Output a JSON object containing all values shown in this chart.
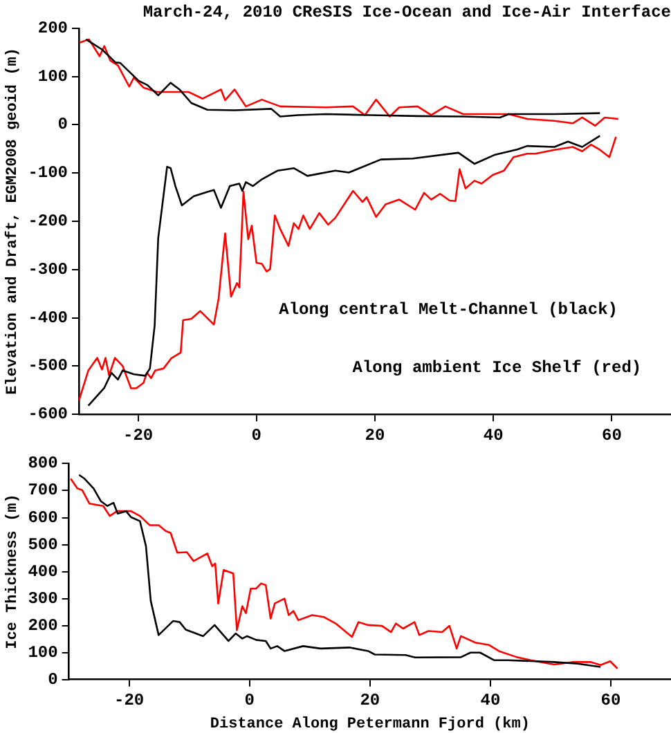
{
  "chart_data": [
    {
      "type": "line",
      "title": "March-24, 2010 CReSIS Ice-Ocean and Ice-Air Interface",
      "ylabel": "Elevation and Draft, EGM2008 geoid (m)",
      "annotations": [
        "Along central Melt-Channel (black)",
        "Along ambient Ice Shelf (red)"
      ],
      "xlim": [
        -30,
        70
      ],
      "xticks": [
        -20,
        0,
        20,
        40,
        60
      ],
      "ylim": [
        -600,
        200
      ],
      "yticks": [
        -600,
        -500,
        -400,
        -300,
        -200,
        -100,
        0,
        100,
        200
      ],
      "grid": false,
      "legend": false,
      "marker": "none",
      "line_style": "solid",
      "series": [
        {
          "color": "#000000",
          "x": [
            -28.8,
            -26.1,
            -23.8,
            -23.0,
            -21.5,
            -19.9,
            -18.4,
            -16.6,
            -14.5,
            -13.0,
            -11.0,
            -8.3,
            -3.7,
            2.5,
            4.0,
            7.0,
            11.7,
            19.4,
            27.2,
            34.9,
            41.1,
            42.6,
            50.3,
            58.0
          ],
          "values": [
            177,
            156,
            129,
            128,
            110,
            91,
            82,
            61,
            87,
            73,
            45,
            31,
            30,
            33,
            17,
            20,
            22,
            20,
            18,
            17,
            15,
            22,
            22,
            24
          ]
        },
        {
          "color": "#ff0000",
          "x": [
            -29.9,
            -28.3,
            -26.5,
            -25.7,
            -24.7,
            -23.4,
            -21.5,
            -20.7,
            -19.1,
            -16.8,
            -11.5,
            -9.1,
            -6.0,
            -5.3,
            -3.7,
            -1.8,
            0.9,
            4.0,
            11.7,
            16.3,
            18.3,
            20.2,
            22.5,
            24.1,
            27.2,
            29.5,
            31.9,
            34.9,
            42.6,
            45.7,
            50.3,
            53.4,
            55.0,
            57.2,
            58.8,
            61.1
          ],
          "values": [
            170,
            177,
            142,
            163,
            133,
            123,
            79,
            98,
            77,
            68,
            68,
            54,
            73,
            51,
            73,
            38,
            52,
            38,
            36,
            38,
            20,
            52,
            17,
            36,
            38,
            20,
            38,
            22,
            22,
            12,
            8,
            3,
            15,
            -2,
            15,
            12
          ]
        },
        {
          "color": "#000000",
          "x": [
            -28.4,
            -25.7,
            -24.5,
            -23.4,
            -22.6,
            -20.7,
            -18.8,
            -18.0,
            -17.2,
            -16.6,
            -15.1,
            -14.5,
            -13.7,
            -12.6,
            -10.6,
            -8.3,
            -7.2,
            -6.0,
            -4.5,
            -2.9,
            -2.4,
            -1.8,
            -0.6,
            0.9,
            3.6,
            6.3,
            8.6,
            13.3,
            15.6,
            21.0,
            26.4,
            34.1,
            36.8,
            40.3,
            44.1,
            45.7,
            50.3,
            52.6,
            55.0,
            58.0
          ],
          "values": [
            -582,
            -545,
            -514,
            -528,
            -509,
            -517,
            -520,
            -505,
            -416,
            -235,
            -87,
            -90,
            -127,
            -167,
            -148,
            -139,
            -135,
            -172,
            -127,
            -122,
            -137,
            -119,
            -127,
            -113,
            -95,
            -90,
            -106,
            -95,
            -99,
            -72,
            -70,
            -58,
            -81,
            -62,
            -51,
            -44,
            -46,
            -35,
            -46,
            -23
          ]
        },
        {
          "color": "#ff0000",
          "x": [
            -30.0,
            -28.4,
            -26.9,
            -26.1,
            -25.5,
            -24.9,
            -23.9,
            -22.6,
            -21.2,
            -20.3,
            -19.1,
            -18.5,
            -17.8,
            -17.1,
            -15.7,
            -14.4,
            -12.8,
            -12.4,
            -11.0,
            -9.5,
            -7.2,
            -6.4,
            -5.3,
            -4.3,
            -3.3,
            -2.9,
            -2.2,
            -1.4,
            -0.8,
            0.0,
            0.9,
            1.7,
            2.3,
            3.1,
            4.0,
            5.4,
            6.3,
            7.1,
            7.9,
            9.0,
            10.6,
            12.1,
            13.3,
            16.3,
            17.9,
            18.6,
            20.2,
            21.8,
            24.1,
            26.8,
            28.3,
            29.5,
            31.0,
            32.6,
            33.6,
            34.3,
            35.3,
            36.8,
            38.0,
            39.9,
            41.8,
            43.4,
            45.7,
            47.1,
            50.3,
            53.4,
            55.0,
            56.5,
            58.0,
            59.6,
            60.7
          ],
          "values": [
            -572,
            -509,
            -483,
            -507,
            -483,
            -519,
            -483,
            -500,
            -546,
            -546,
            -535,
            -514,
            -525,
            -509,
            -505,
            -484,
            -472,
            -405,
            -402,
            -386,
            -414,
            -360,
            -225,
            -356,
            -328,
            -337,
            -139,
            -237,
            -209,
            -286,
            -288,
            -304,
            -299,
            -188,
            -216,
            -251,
            -204,
            -216,
            -188,
            -216,
            -183,
            -207,
            -193,
            -137,
            -160,
            -150,
            -191,
            -165,
            -155,
            -176,
            -141,
            -155,
            -143,
            -157,
            -158,
            -92,
            -132,
            -116,
            -122,
            -104,
            -95,
            -67,
            -60,
            -60,
            -52,
            -46,
            -55,
            -41,
            -52,
            -67,
            -25
          ]
        }
      ]
    },
    {
      "type": "line",
      "xlabel": "Distance Along Petermann Fjord (km)",
      "ylabel": "Ice Thickness (m)",
      "xlim": [
        -30,
        70
      ],
      "xticks": [
        -20,
        0,
        20,
        40,
        60
      ],
      "ylim": [
        0,
        800
      ],
      "yticks": [
        0,
        100,
        200,
        300,
        400,
        500,
        600,
        700,
        800
      ],
      "grid": false,
      "legend": false,
      "marker": "none",
      "line_style": "solid",
      "series": [
        {
          "color": "#000000",
          "x": [
            -28.3,
            -27.4,
            -25.9,
            -24.7,
            -23.6,
            -22.6,
            -21.9,
            -20.5,
            -19.7,
            -18.2,
            -17.2,
            -16.4,
            -15.1,
            -12.7,
            -11.6,
            -10.6,
            -7.7,
            -5.8,
            -3.5,
            -2.3,
            -1.2,
            -0.4,
            1.1,
            2.7,
            3.5,
            4.6,
            5.8,
            8.9,
            11.8,
            16.6,
            19.7,
            20.8,
            25.9,
            27.5,
            35.1,
            36.7,
            38.3,
            40.6,
            42.9,
            50.6,
            54.5,
            58.3
          ],
          "values": [
            758,
            744,
            708,
            661,
            643,
            655,
            615,
            624,
            602,
            587,
            494,
            291,
            165,
            217,
            213,
            185,
            161,
            202,
            143,
            171,
            152,
            161,
            147,
            143,
            115,
            124,
            106,
            124,
            115,
            119,
            106,
            93,
            91,
            82,
            83,
            100,
            100,
            72,
            72,
            65,
            59,
            47
          ]
        },
        {
          "color": "#ff0000",
          "x": [
            -29.7,
            -28.6,
            -27.8,
            -26.6,
            -24.3,
            -23.2,
            -22.0,
            -19.7,
            -18.2,
            -16.6,
            -15.1,
            -13.9,
            -13.1,
            -12.0,
            -10.4,
            -9.3,
            -7.0,
            -6.2,
            -5.7,
            -5.2,
            -4.3,
            -2.7,
            -2.1,
            -1.2,
            -0.6,
            0.2,
            1.1,
            1.9,
            2.7,
            3.5,
            4.2,
            5.8,
            6.5,
            7.3,
            8.1,
            10.4,
            12.3,
            14.3,
            17.0,
            18.1,
            19.7,
            22.0,
            23.5,
            24.3,
            25.5,
            27.4,
            28.2,
            29.7,
            32.0,
            33.2,
            34.4,
            35.1,
            37.5,
            39.8,
            41.4,
            44.4,
            46.7,
            50.6,
            53.6,
            56.7,
            58.3,
            59.9,
            61.1
          ],
          "values": [
            744,
            708,
            702,
            652,
            643,
            606,
            624,
            624,
            606,
            572,
            572,
            550,
            543,
            470,
            472,
            439,
            467,
            420,
            430,
            282,
            406,
            393,
            183,
            272,
            246,
            337,
            337,
            356,
            350,
            226,
            282,
            300,
            239,
            254,
            220,
            239,
            232,
            208,
            158,
            213,
            202,
            199,
            176,
            208,
            189,
            213,
            165,
            180,
            176,
            199,
            115,
            161,
            137,
            128,
            106,
            83,
            72,
            56,
            65,
            65,
            54,
            68,
            41
          ]
        }
      ]
    }
  ]
}
